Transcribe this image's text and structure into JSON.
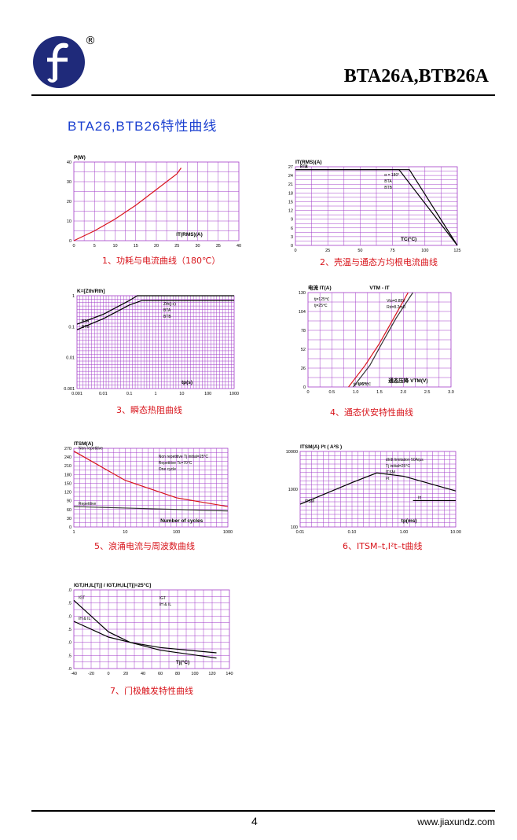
{
  "header": {
    "part_number": "BTA26A,BTB26A",
    "registered_mark": "®"
  },
  "section_title": "BTA26,BTB26特性曲线",
  "figures": [
    {
      "caption": "1、功耗与电流曲线（180℃）",
      "ylabel": "P(W)",
      "xlabel": "IT(RMS)(A)",
      "yticks": [
        "0",
        "10",
        "20",
        "30",
        "40"
      ],
      "xticks": [
        "0",
        "5",
        "10",
        "15",
        "20",
        "25",
        "30",
        "35",
        "40"
      ]
    },
    {
      "caption": "2、壳温与通态方均根电流曲线",
      "ylabel": "IT(RMS)(A)",
      "xlabel": "TC(°C)",
      "yticks": [
        "0",
        "3",
        "6",
        "9",
        "12",
        "15",
        "18",
        "21",
        "24",
        "27"
      ],
      "xticks": [
        "0",
        "25",
        "50",
        "75",
        "100",
        "125"
      ],
      "annotations": [
        "α = 180°",
        "BTA",
        "BTB"
      ]
    },
    {
      "caption": "3、瞬态热阻曲线",
      "ylabel": "K=[Zth/Rth]",
      "xlabel": "tp(s)",
      "yticks": [
        "0.001",
        "0.01",
        "0.1",
        "1"
      ],
      "xticks": [
        "0.001",
        "0.01",
        "0.1",
        "1",
        "10",
        "100",
        "1000"
      ],
      "annotations": [
        "Zth(j-c)",
        "BTA",
        "BTB"
      ]
    },
    {
      "caption": "4、通态伏安特性曲线",
      "title": "VTM - IT",
      "ylabel": "电流 IT(A)",
      "xlabel": "通态压降 VTM(V)",
      "yticks": [
        "0",
        "26",
        "52",
        "78",
        "104",
        "130"
      ],
      "xticks": [
        "0",
        "0.5",
        "1.0",
        "1.5",
        "2.0",
        "2.5",
        "3.0"
      ],
      "legend": [
        "tj=125℃",
        "tj=25℃"
      ],
      "annotations": [
        "Vto=0.85V",
        "Rd=8.2mΩ"
      ]
    },
    {
      "caption": "5、浪涌电流与周波数曲线",
      "ylabel": "ITSM(A)",
      "xlabel": "Number of cycles",
      "yticks": [
        "0",
        "30",
        "60",
        "90",
        "120",
        "150",
        "180",
        "210",
        "240",
        "270"
      ],
      "xticks": [
        "1",
        "10",
        "100",
        "1000"
      ],
      "annotations": [
        "Non repetitive Tj initial=25°C",
        "Repetitive Tc=70°C",
        "One cycle"
      ]
    },
    {
      "caption": "6、ITSM–t,I²t–t曲线",
      "ylabel": "ITSM(A) I²t ( A²S )",
      "xlabel": "tp(ms)",
      "yticks": [
        "100",
        "1000",
        "10000"
      ],
      "xticks": [
        "0.01",
        "0.10",
        "1.00",
        "10.00"
      ],
      "annotations": [
        "dI/dt limitation 50A/μs",
        "Tj initial=25°C",
        "ITSM",
        "I²t"
      ]
    },
    {
      "caption": "7、门极触发特性曲线",
      "ylabel": "IGT,IH,IL[Tj] / IGT,IH,IL[Tj]=25°C]",
      "xlabel": "Tj(°C)",
      "yticks": [
        ".0",
        ".5",
        ".0",
        ".5",
        ".0",
        ".5",
        ".0"
      ],
      "xticks": [
        "-40",
        "-20",
        "0",
        "20",
        "40",
        "60",
        "80",
        "100",
        "120",
        "140"
      ],
      "annotations": [
        "IGT",
        "IH & IL"
      ]
    }
  ],
  "chart_data": [
    {
      "type": "line",
      "series": [
        {
          "values": [
            [
              0,
              0
            ],
            [
              5,
              5
            ],
            [
              10,
              11
            ],
            [
              15,
              18
            ],
            [
              20,
              26
            ],
            [
              25,
              34
            ],
            [
              26,
              37
            ]
          ]
        }
      ],
      "ylabel": "P(W)",
      "xlabel": "IT(RMS)(A)",
      "xlim": [
        0,
        40
      ],
      "ylim": [
        0,
        40
      ]
    },
    {
      "type": "line",
      "series": [
        {
          "name": "BTA",
          "values": [
            [
              0,
              26
            ],
            [
              80,
              26
            ],
            [
              125,
              0
            ]
          ]
        },
        {
          "name": "BTB",
          "values": [
            [
              0,
              26
            ],
            [
              88,
              26
            ],
            [
              125,
              0
            ]
          ]
        }
      ],
      "ylabel": "IT(RMS)(A)",
      "xlabel": "TC(°C)",
      "xlim": [
        0,
        125
      ],
      "ylim": [
        0,
        27
      ]
    },
    {
      "type": "line",
      "series": [
        {
          "name": "BTA",
          "values": [
            [
              0.001,
              0.12
            ],
            [
              0.01,
              0.25
            ],
            [
              0.1,
              0.7
            ],
            [
              0.2,
              1
            ],
            [
              1000,
              1
            ]
          ]
        },
        {
          "name": "BTB",
          "values": [
            [
              0.001,
              0.08
            ],
            [
              0.01,
              0.18
            ],
            [
              0.1,
              0.5
            ],
            [
              0.3,
              0.7
            ],
            [
              1000,
              0.7
            ]
          ]
        }
      ],
      "ylabel": "K=[Zth/Rth]",
      "xlabel": "tp(s)",
      "yscale": "log",
      "xscale": "log"
    },
    {
      "type": "line",
      "series": [
        {
          "name": "tj=125℃",
          "values": [
            [
              0.85,
              0
            ],
            [
              1.2,
              30
            ],
            [
              1.5,
              60
            ],
            [
              1.8,
              95
            ],
            [
              2.1,
              130
            ]
          ]
        },
        {
          "name": "tj=25℃",
          "values": [
            [
              0.95,
              0
            ],
            [
              1.3,
              30
            ],
            [
              1.55,
              60
            ],
            [
              1.85,
              95
            ],
            [
              2.2,
              130
            ]
          ]
        }
      ],
      "ylabel": "电流 IT(A)",
      "xlabel": "通态压降 VTM(V)",
      "xlim": [
        0,
        3
      ],
      "ylim": [
        0,
        130
      ]
    },
    {
      "type": "line",
      "series": [
        {
          "name": "Non repetitive",
          "values": [
            [
              1,
              260
            ],
            [
              2,
              230
            ],
            [
              5,
              190
            ],
            [
              10,
              160
            ],
            [
              100,
              100
            ],
            [
              1000,
              70
            ]
          ]
        },
        {
          "name": "Repetitive",
          "values": [
            [
              1,
              70
            ],
            [
              10,
              65
            ],
            [
              100,
              60
            ],
            [
              1000,
              55
            ]
          ]
        }
      ],
      "ylabel": "ITSM(A)",
      "xlabel": "Number of cycles",
      "xscale": "log",
      "ylim": [
        0,
        270
      ]
    },
    {
      "type": "line",
      "series": [
        {
          "name": "ITSM",
          "values": [
            [
              0.01,
              400
            ],
            [
              0.1,
              1500
            ],
            [
              0.3,
              2700
            ],
            [
              1,
              2200
            ],
            [
              10,
              900
            ]
          ]
        },
        {
          "name": "I²t",
          "values": [
            [
              1.5,
              500
            ],
            [
              10,
              500
            ]
          ]
        }
      ],
      "ylabel": "ITSM(A) I²t ( A²S )",
      "xlabel": "tp(ms)",
      "xscale": "log",
      "yscale": "log"
    },
    {
      "type": "line",
      "series": [
        {
          "name": "IGT",
          "values": [
            [
              -40,
              2.6
            ],
            [
              0,
              1.4
            ],
            [
              25,
              1.0
            ],
            [
              60,
              0.7
            ],
            [
              125,
              0.4
            ]
          ]
        },
        {
          "name": "IH & IL",
          "values": [
            [
              -40,
              1.8
            ],
            [
              0,
              1.2
            ],
            [
              25,
              1.0
            ],
            [
              60,
              0.8
            ],
            [
              125,
              0.6
            ]
          ]
        }
      ],
      "ylabel": "IGT,IH,IL[Tj] / IGT,IH,IL[Tj]=25°C]",
      "xlabel": "Tj(°C)",
      "xlim": [
        -40,
        140
      ]
    }
  ],
  "footer": {
    "page_number": "4",
    "website": "www.jiaxundz.com"
  },
  "colors": {
    "accent": "#1a3fd0",
    "grid": "#a23cc8",
    "curve_red": "#d8141b",
    "logo": "#1f2a7a"
  }
}
